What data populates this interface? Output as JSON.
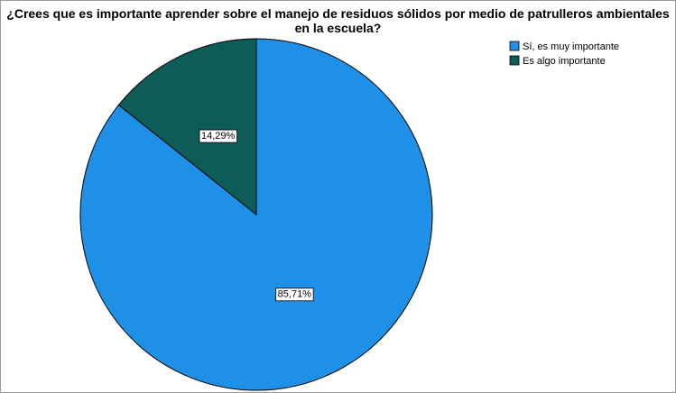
{
  "chart_data": {
    "type": "pie",
    "title": "¿Crees que es importante aprender sobre el manejo de residuos sólidos por medio de patrulleros ambientales en la escuela?",
    "categories": [
      "Sí, es muy importante",
      "Es algo importante"
    ],
    "values": [
      85.71,
      14.29
    ],
    "value_labels": [
      "85,71%",
      "14,29%"
    ],
    "colors": [
      "#1f90e8",
      "#0e5c58"
    ],
    "legend": "top-right"
  }
}
